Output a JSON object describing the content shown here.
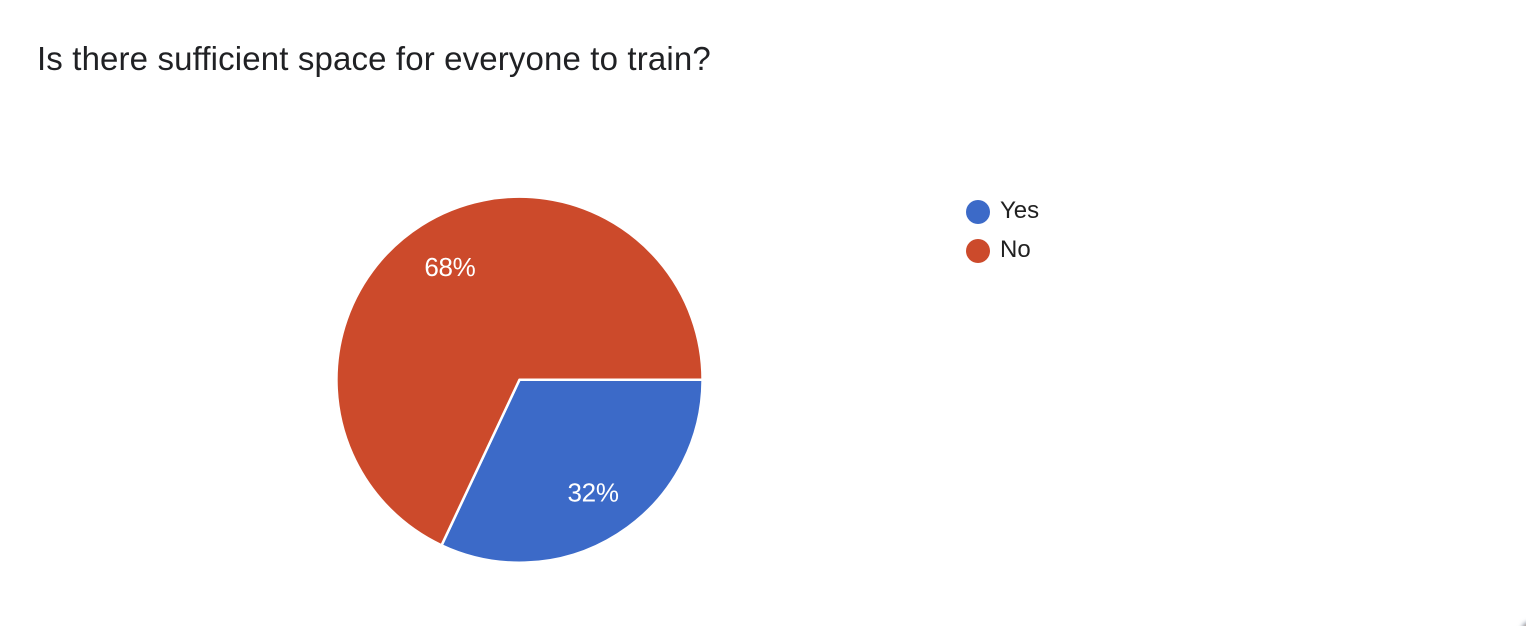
{
  "title": {
    "text": "Is there sufficient space for everyone to train?",
    "color": "#202124"
  },
  "chart_data": {
    "type": "pie",
    "title": "Is there sufficient space for everyone to train?",
    "labels": [
      "Yes",
      "No"
    ],
    "values": [
      32,
      68
    ],
    "unit": "percent",
    "slice_labels": [
      "32%",
      "68%"
    ],
    "colors": [
      "#3C6AC8",
      "#CC4A2B"
    ],
    "slice_label_color": "#ffffff",
    "slice_separator_color": "#ffffff",
    "legend": {
      "position": "right",
      "items": [
        {
          "label": "Yes",
          "color": "#3C6AC8"
        },
        {
          "label": "No",
          "color": "#CC4A2B"
        }
      ]
    }
  },
  "corner_artifact": {
    "gray_color": "#9AA3B2",
    "orange_color": "#E8A05C"
  }
}
